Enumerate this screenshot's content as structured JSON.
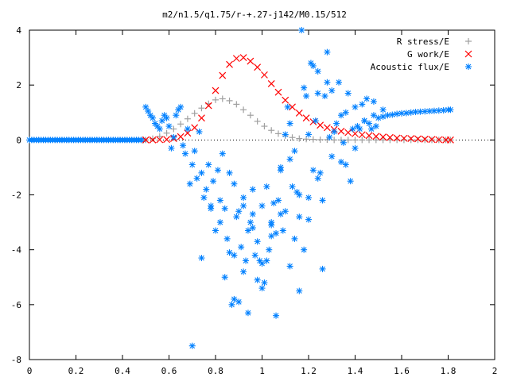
{
  "chart_data": {
    "type": "scatter",
    "title": "m2/n1.5/q1.75/r-+.27-j142/M0.15/512",
    "xlabel": "",
    "ylabel": "",
    "xlim": [
      0,
      2
    ],
    "ylim": [
      -8,
      4
    ],
    "xticks": [
      0,
      0.2,
      0.4,
      0.6,
      0.8,
      1,
      1.2,
      1.4,
      1.6,
      1.8,
      2
    ],
    "yticks": [
      -8,
      -6,
      -4,
      -2,
      0,
      2,
      4
    ],
    "grid": false,
    "legend_position": "top-right",
    "colors": {
      "r_stress": "#a0a0a0",
      "g_work": "#ff0000",
      "acoustic_flux": "#0080ff"
    },
    "series": [
      {
        "name": "R stress/E",
        "marker": "+",
        "x": [
          0.5,
          0.53,
          0.56,
          0.59,
          0.62,
          0.65,
          0.68,
          0.71,
          0.74,
          0.77,
          0.8,
          0.83,
          0.86,
          0.89,
          0.92,
          0.95,
          0.98,
          1.01,
          1.04,
          1.07,
          1.1,
          1.13,
          1.16,
          1.19,
          1.22,
          1.25,
          1.28,
          1.31,
          1.34,
          1.37,
          1.4,
          1.43,
          1.46,
          1.49,
          1.52,
          1.55,
          1.58,
          1.61,
          1.64,
          1.67,
          1.7,
          1.73,
          1.76,
          1.79,
          1.81
        ],
        "y": [
          0.0,
          0.05,
          0.13,
          0.25,
          0.4,
          0.58,
          0.77,
          0.97,
          1.16,
          1.32,
          1.46,
          1.5,
          1.43,
          1.3,
          1.1,
          0.9,
          0.68,
          0.5,
          0.35,
          0.23,
          0.15,
          0.09,
          0.05,
          0.03,
          0.02,
          0.01,
          0.01,
          0.0,
          0.0,
          0.0,
          0.0,
          0.0,
          0.0,
          0.0,
          0.0,
          0.0,
          0.0,
          0.0,
          0.0,
          0.0,
          0.0,
          0.0,
          0.0,
          0.0,
          0.0
        ]
      },
      {
        "name": "G work/E",
        "marker": "x",
        "x": [
          0.5,
          0.53,
          0.56,
          0.59,
          0.62,
          0.65,
          0.68,
          0.71,
          0.74,
          0.77,
          0.8,
          0.83,
          0.86,
          0.89,
          0.92,
          0.95,
          0.98,
          1.01,
          1.04,
          1.07,
          1.1,
          1.13,
          1.16,
          1.19,
          1.22,
          1.25,
          1.28,
          1.31,
          1.34,
          1.37,
          1.4,
          1.43,
          1.46,
          1.49,
          1.52,
          1.55,
          1.58,
          1.61,
          1.64,
          1.67,
          1.7,
          1.73,
          1.76,
          1.79,
          1.81
        ],
        "y": [
          0.0,
          0.0,
          0.01,
          0.02,
          0.05,
          0.12,
          0.25,
          0.45,
          0.8,
          1.25,
          1.8,
          2.35,
          2.75,
          2.97,
          3.0,
          2.87,
          2.65,
          2.37,
          2.05,
          1.74,
          1.45,
          1.2,
          0.98,
          0.8,
          0.66,
          0.54,
          0.45,
          0.38,
          0.32,
          0.27,
          0.23,
          0.19,
          0.16,
          0.13,
          0.11,
          0.09,
          0.07,
          0.06,
          0.05,
          0.04,
          0.03,
          0.02,
          0.01,
          0.0,
          0.0
        ]
      },
      {
        "name": "Acoustic flux/E",
        "marker": "*",
        "x": [
          0.5,
          0.51,
          0.52,
          0.53,
          0.54,
          0.55,
          0.56,
          0.57,
          0.58,
          0.59,
          0.6,
          0.61,
          0.62,
          0.63,
          0.64,
          0.65,
          0.66,
          0.67,
          0.68,
          0.69,
          0.7,
          0.71,
          0.72,
          0.73,
          0.74,
          0.75,
          0.76,
          0.77,
          0.78,
          0.79,
          0.8,
          0.81,
          0.82,
          0.83,
          0.84,
          0.85,
          0.86,
          0.87,
          0.88,
          0.89,
          0.9,
          0.91,
          0.92,
          0.93,
          0.94,
          0.95,
          0.96,
          0.97,
          0.98,
          0.99,
          1.0,
          1.01,
          1.02,
          1.03,
          1.04,
          1.05,
          1.06,
          1.07,
          1.08,
          1.09,
          1.1,
          1.11,
          1.12,
          1.13,
          1.14,
          1.15,
          1.16,
          1.17,
          1.18,
          1.19,
          1.2,
          1.21,
          1.22,
          1.23,
          1.24,
          1.25,
          1.26,
          1.27,
          1.28,
          1.29,
          1.3,
          1.31,
          1.32,
          1.33,
          1.34,
          1.35,
          1.36,
          1.37,
          1.38,
          1.39,
          1.4,
          1.41,
          1.42,
          1.43,
          1.44,
          1.45,
          1.46,
          1.47,
          1.48,
          1.49,
          1.5,
          1.52,
          1.54,
          1.56,
          1.58,
          1.6,
          1.62,
          1.64,
          1.66,
          1.68,
          1.7,
          1.72,
          1.74,
          1.76,
          1.78,
          1.8,
          1.81,
          0.7,
          0.74,
          0.78,
          0.82,
          0.86,
          0.9,
          0.94,
          0.98,
          1.02,
          1.06,
          1.1,
          1.14,
          1.18,
          1.22,
          1.26,
          1.3,
          1.34,
          0.88,
          0.92,
          0.96,
          1.0,
          1.04,
          1.08,
          1.12,
          1.16,
          1.2,
          1.24,
          1.28,
          0.84,
          0.88,
          0.92,
          0.96,
          1.0,
          1.04,
          1.08,
          1.12,
          1.16,
          1.2,
          1.24,
          1.36,
          1.4,
          1.44,
          1.48,
          1.52
        ],
        "y": [
          1.2,
          1.05,
          0.9,
          0.8,
          0.6,
          0.5,
          0.4,
          0.7,
          0.9,
          0.8,
          0.5,
          -0.3,
          0.1,
          0.9,
          1.1,
          1.2,
          -0.2,
          -0.5,
          0.4,
          -1.6,
          -0.9,
          -0.4,
          -1.4,
          0.3,
          -1.2,
          -2.1,
          -1.8,
          -0.9,
          -2.4,
          -1.5,
          -3.3,
          -1.1,
          -2.2,
          -0.5,
          -2.5,
          -3.6,
          -4.1,
          -6.0,
          -1.6,
          -2.8,
          -5.9,
          -3.9,
          -2.4,
          -4.4,
          -6.3,
          -3.0,
          -2.7,
          -4.2,
          -3.7,
          -4.4,
          -2.4,
          -5.2,
          -1.7,
          -4.0,
          -3.1,
          -2.3,
          -6.4,
          -2.2,
          -1.1,
          -3.3,
          0.2,
          1.2,
          0.6,
          -1.7,
          -3.6,
          -1.9,
          -2.0,
          4.0,
          1.9,
          1.6,
          0.2,
          2.8,
          2.7,
          0.7,
          1.7,
          -1.2,
          -2.2,
          1.6,
          2.1,
          0.1,
          1.8,
          0.3,
          0.6,
          2.1,
          0.9,
          -0.1,
          1.0,
          1.7,
          -1.5,
          0.4,
          1.2,
          0.5,
          0.4,
          1.3,
          0.7,
          1.5,
          0.6,
          0.4,
          0.9,
          0.5,
          0.8,
          0.85,
          0.9,
          0.92,
          0.95,
          0.97,
          0.98,
          1.0,
          1.02,
          1.03,
          1.04,
          1.05,
          1.06,
          1.07,
          1.08,
          1.1,
          1.1,
          -7.5,
          -4.3,
          -2.5,
          -3.0,
          -1.2,
          -2.6,
          -3.3,
          -5.1,
          -4.4,
          -3.4,
          -2.6,
          -0.4,
          -4.0,
          -1.1,
          -4.7,
          -0.6,
          -0.8,
          -4.2,
          -2.1,
          -1.8,
          -4.5,
          -3.5,
          -1.0,
          -0.7,
          -2.8,
          -2.1,
          2.5,
          3.2,
          -5.0,
          -5.8,
          -4.8,
          -3.2,
          -5.4,
          -3.0,
          -2.7,
          -4.6,
          -5.5,
          -2.9,
          -1.4,
          -0.9,
          -0.3,
          0.7,
          1.4,
          1.1
        ]
      }
    ]
  }
}
